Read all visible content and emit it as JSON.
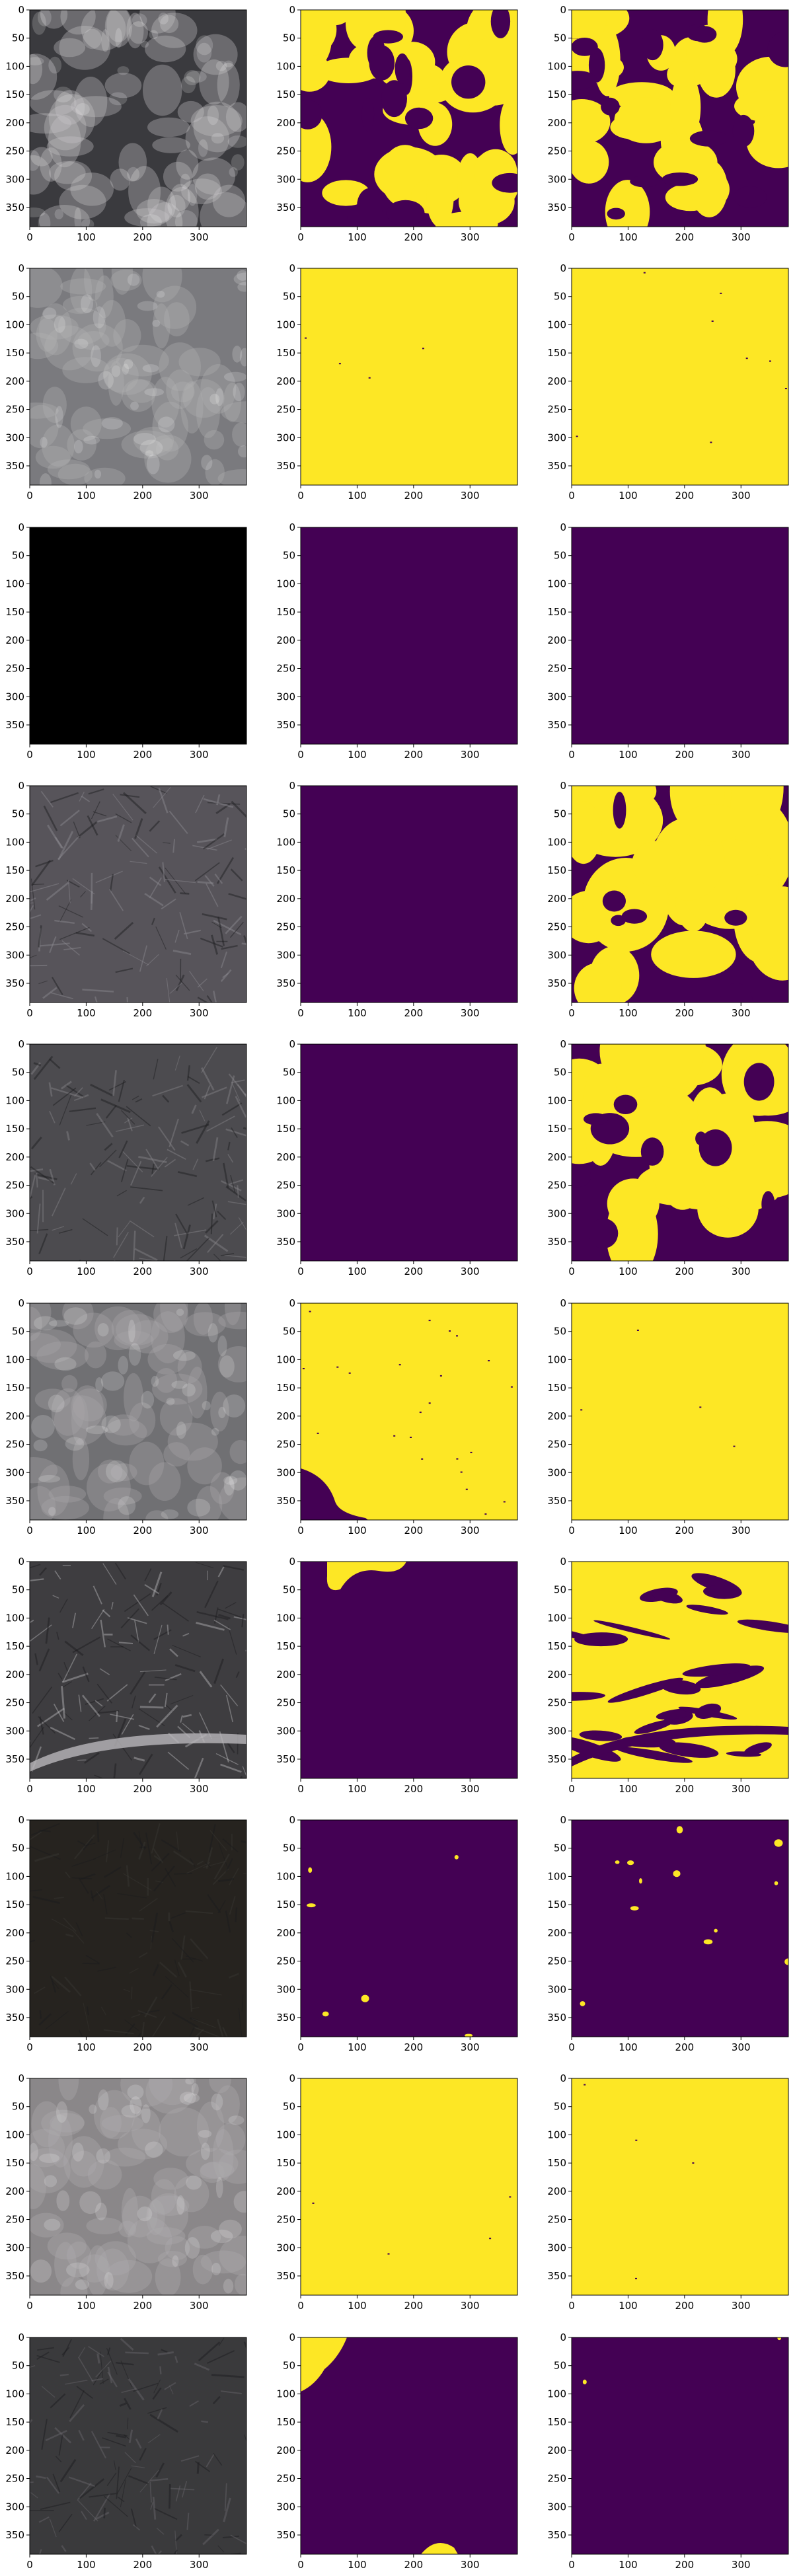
{
  "chart_data": {
    "type": "heatmap",
    "layout": {
      "rows": 10,
      "columns": 3
    },
    "axes_common": {
      "xlim": [
        0,
        384
      ],
      "ylim": [
        384,
        0
      ],
      "xticks": [
        0,
        100,
        200,
        300
      ],
      "yticks": [
        0,
        50,
        100,
        150,
        200,
        250,
        300,
        350
      ],
      "grid": false
    },
    "colormap": {
      "name": "viridis",
      "low": "#440154",
      "high": "#fde725"
    },
    "rows": [
      {
        "image": {
          "tone": "dark sky with bright clouds",
          "base": "#3a3a3e",
          "light": "#c9c6c9"
        },
        "mask1": {
          "class1_fraction": 0.55,
          "pattern": "scattered"
        },
        "mask2": {
          "class1_fraction": 0.6,
          "pattern": "scattered"
        }
      },
      {
        "image": {
          "tone": "hazy overcast clouds",
          "base": "#7a7a7e",
          "light": "#b3b1b3"
        },
        "mask1": {
          "class1_fraction": 0.99,
          "pattern": "full"
        },
        "mask2": {
          "class1_fraction": 0.98,
          "pattern": "full"
        }
      },
      {
        "image": {
          "tone": "black",
          "base": "#000000",
          "light": "#000000"
        },
        "mask1": {
          "class1_fraction": 0.0,
          "pattern": "empty"
        },
        "mask2": {
          "class1_fraction": 0.0,
          "pattern": "empty"
        }
      },
      {
        "image": {
          "tone": "gray mountain terrain",
          "base": "#57545a",
          "light": "#8f8b92"
        },
        "mask1": {
          "class1_fraction": 0.0,
          "pattern": "empty"
        },
        "mask2": {
          "class1_fraction": 0.75,
          "pattern": "large"
        }
      },
      {
        "image": {
          "tone": "ridged mountain terrain",
          "base": "#4c4b4f",
          "light": "#87858a"
        },
        "mask1": {
          "class1_fraction": 0.0,
          "pattern": "empty"
        },
        "mask2": {
          "class1_fraction": 0.55,
          "pattern": "large"
        }
      },
      {
        "image": {
          "tone": "thin cloud over terrain",
          "base": "#707073",
          "light": "#a9a7aa"
        },
        "mask1": {
          "class1_fraction": 0.94,
          "pattern": "corner-dark"
        },
        "mask2": {
          "class1_fraction": 0.99,
          "pattern": "full"
        }
      },
      {
        "image": {
          "tone": "mountain terrain with snow streak",
          "base": "#3e3d40",
          "light": "#b9b7ba"
        },
        "mask1": {
          "class1_fraction": 0.03,
          "pattern": "top-spot"
        },
        "mask2": {
          "class1_fraction": 0.65,
          "pattern": "bands"
        }
      },
      {
        "image": {
          "tone": "dark terrain",
          "base": "#26231f",
          "light": "#3a3733"
        },
        "mask1": {
          "class1_fraction": 0.01,
          "pattern": "specks"
        },
        "mask2": {
          "class1_fraction": 0.02,
          "pattern": "specks"
        }
      },
      {
        "image": {
          "tone": "hazy clouds",
          "base": "#8a8789",
          "light": "#b0adaf"
        },
        "mask1": {
          "class1_fraction": 0.99,
          "pattern": "full"
        },
        "mask2": {
          "class1_fraction": 0.99,
          "pattern": "full"
        }
      },
      {
        "image": {
          "tone": "dark rough terrain",
          "base": "#3a3a3c",
          "light": "#6a696c"
        },
        "mask1": {
          "class1_fraction": 0.06,
          "pattern": "top-left"
        },
        "mask2": {
          "class1_fraction": 0.001,
          "pattern": "specks"
        }
      }
    ]
  }
}
